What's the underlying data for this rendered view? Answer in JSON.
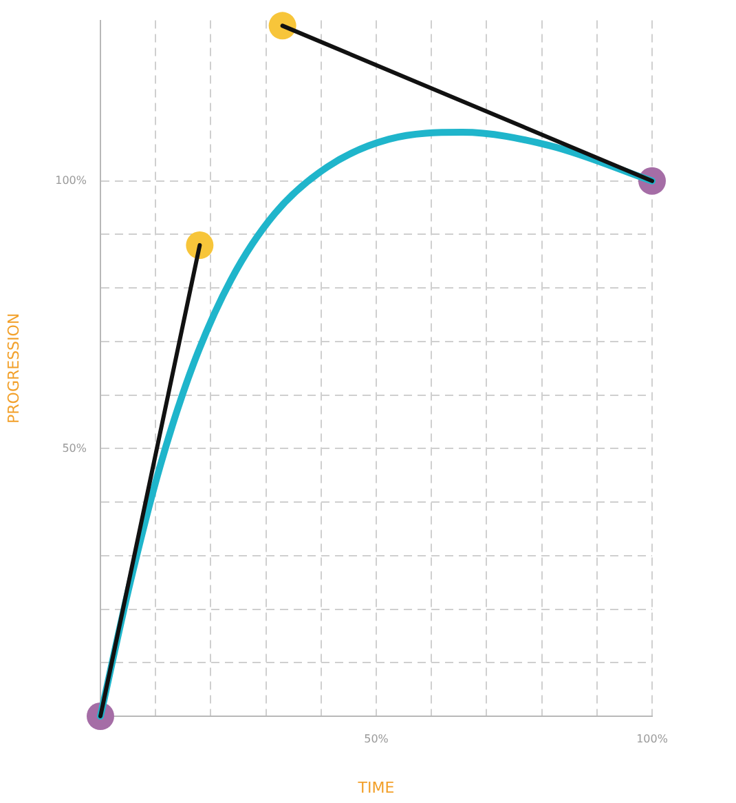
{
  "chart_data": {
    "type": "line",
    "xlabel": "TIME",
    "ylabel": "PROGRESSION",
    "xlim": [
      0,
      100
    ],
    "ylim": [
      0,
      130
    ],
    "xticks": [
      {
        "value": 0,
        "label": null
      },
      {
        "value": 10,
        "label": null
      },
      {
        "value": 20,
        "label": null
      },
      {
        "value": 30,
        "label": null
      },
      {
        "value": 40,
        "label": null
      },
      {
        "value": 50,
        "label": "50%"
      },
      {
        "value": 60,
        "label": null
      },
      {
        "value": 70,
        "label": null
      },
      {
        "value": 80,
        "label": null
      },
      {
        "value": 90,
        "label": null
      },
      {
        "value": 100,
        "label": "100%"
      }
    ],
    "yticks": [
      {
        "value": 0,
        "label": null
      },
      {
        "value": 10,
        "label": null
      },
      {
        "value": 20,
        "label": null
      },
      {
        "value": 30,
        "label": null
      },
      {
        "value": 40,
        "label": null
      },
      {
        "value": 50,
        "label": "50%"
      },
      {
        "value": 60,
        "label": null
      },
      {
        "value": 70,
        "label": null
      },
      {
        "value": 80,
        "label": null
      },
      {
        "value": 90,
        "label": null
      },
      {
        "value": 100,
        "label": "100%"
      }
    ],
    "grid": true,
    "legend": false,
    "line_style": "solid",
    "series": [
      {
        "type": "line",
        "color": "#111111",
        "marker": "none",
        "x": [
          0,
          18
        ],
        "values": [
          0,
          88
        ]
      },
      {
        "type": "line",
        "color": "#111111",
        "marker": "none",
        "x": [
          33,
          100
        ],
        "values": [
          129,
          100
        ]
      },
      {
        "type": "line",
        "color": "#1fb5cb",
        "marker": "none",
        "x": [
          0,
          5.4,
          10.9,
          16.9,
          23.7,
          31.6,
          41.1,
          52.3,
          65.6,
          81.4,
          100
        ],
        "values": [
          0,
          25,
          47,
          65.9,
          81.6,
          93.9,
          102.6,
          107.8,
          109.1,
          106.6,
          100
        ]
      },
      {
        "type": "scatter",
        "color": "#f7c53a",
        "marker": "circle",
        "x": [
          18,
          33
        ],
        "values": [
          88,
          129
        ]
      },
      {
        "type": "scatter",
        "color": "#a56da6",
        "marker": "circle",
        "x": [
          0,
          100
        ],
        "values": [
          0,
          100
        ]
      }
    ]
  }
}
